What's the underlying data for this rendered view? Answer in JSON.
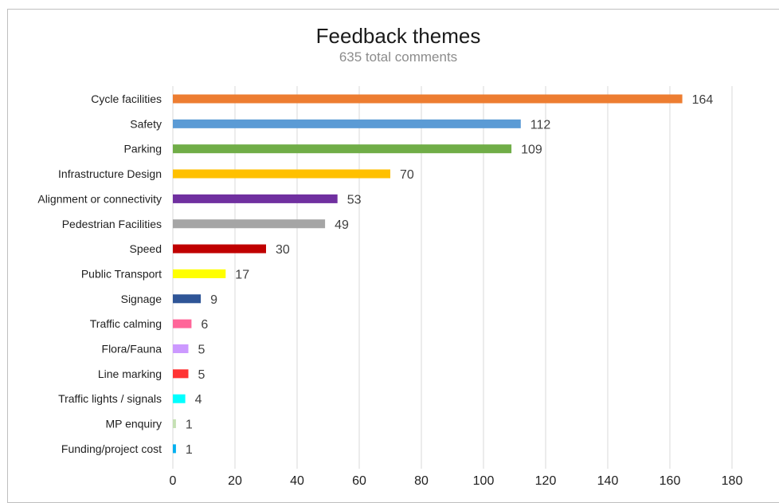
{
  "chart_data": {
    "type": "bar",
    "orientation": "horizontal",
    "title": "Feedback themes",
    "subtitle": "635 total comments",
    "categories": [
      "Cycle facilities",
      "Safety",
      "Parking",
      "Infrastructure Design",
      "Alignment or connectivity",
      "Pedestrian Facilities",
      "Speed",
      "Public Transport",
      "Signage",
      "Traffic calming",
      "Flora/Fauna",
      "Line marking",
      "Traffic lights / signals",
      "MP enquiry",
      "Funding/project cost"
    ],
    "values": [
      164,
      112,
      109,
      70,
      53,
      49,
      30,
      17,
      9,
      6,
      5,
      5,
      4,
      1,
      1
    ],
    "colors": [
      "#ED7D31",
      "#5B9BD5",
      "#70AD47",
      "#FFC000",
      "#7030A0",
      "#A5A5A5",
      "#C00000",
      "#FFFF00",
      "#2F5597",
      "#FF6699",
      "#CC99FF",
      "#FF3333",
      "#00FFFF",
      "#C5E0B4",
      "#00B0F0"
    ],
    "xlim": [
      0,
      180
    ],
    "xticks": [
      0,
      20,
      40,
      60,
      80,
      100,
      120,
      140,
      160,
      180
    ],
    "grid": true,
    "data_labels": true,
    "legend": "none"
  }
}
